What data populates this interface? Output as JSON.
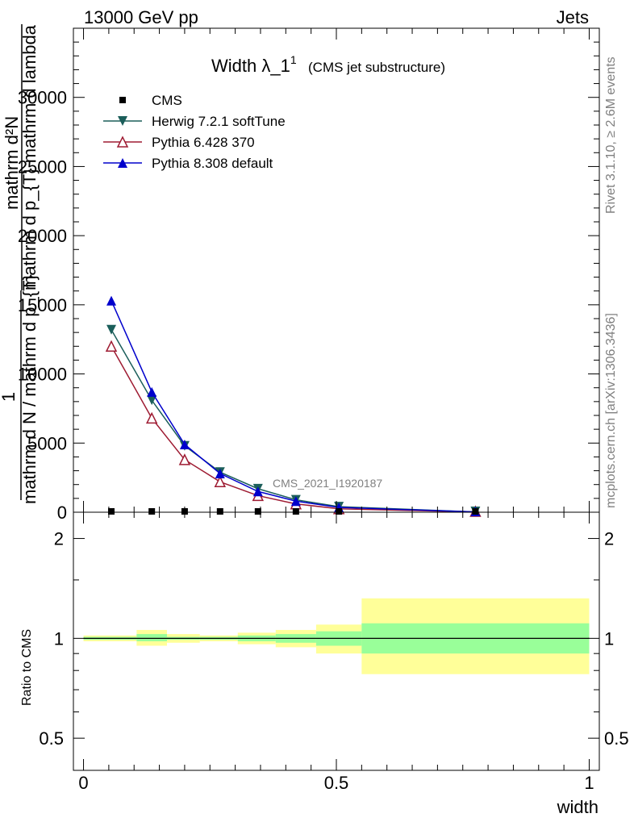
{
  "header": {
    "left": "13000 GeV pp",
    "right": "Jets"
  },
  "side": {
    "top": "Rivet 3.1.10, ≥ 2.6M events",
    "bottom": "mcplots.cern.ch [arXiv:1306.3436]"
  },
  "watermark": "CMS_2021_I1920187",
  "chart_data": [
    {
      "type": "line",
      "title": "Width λ_1",
      "title_superscript": "1",
      "subtitle": "(CMS jet substructure)",
      "ylabel_numerator": "mathrm d²N",
      "ylabel_denominator": "mathrm d p_{T} mathrm d lambda",
      "ylabel_prefix_numerator": "1",
      "ylabel_prefix_denominator": "mathrm d N / mathrm d p_{T}",
      "ylim": [
        0,
        35000
      ],
      "xlim": [
        -0.02,
        1.02
      ],
      "yticks": [
        0,
        5000,
        10000,
        15000,
        20000,
        25000,
        30000
      ],
      "ytick_labels": [
        "0",
        "5000",
        "10000",
        "15000",
        "20000",
        "25000",
        "30000"
      ],
      "legend_position": "top-left",
      "series": [
        {
          "name": "CMS",
          "color": "#000000",
          "marker": "square",
          "x": [
            0.055,
            0.135,
            0.2,
            0.27,
            0.345,
            0.42,
            0.505,
            0.775
          ],
          "y": [
            60,
            60,
            55,
            50,
            45,
            35,
            20,
            2
          ]
        },
        {
          "name": "Herwig 7.2.1 softTune",
          "color": "#1b5e5a",
          "marker": "triangle-down",
          "x": [
            0.055,
            0.135,
            0.2,
            0.27,
            0.345,
            0.42,
            0.505,
            0.775
          ],
          "y": [
            13200,
            8100,
            4800,
            2900,
            1700,
            900,
            400,
            20
          ]
        },
        {
          "name": "Pythia 6.428 370",
          "color": "#9e1b32",
          "marker": "triangle-up-open",
          "x": [
            0.055,
            0.135,
            0.2,
            0.27,
            0.345,
            0.42,
            0.505,
            0.775
          ],
          "y": [
            12000,
            6800,
            3800,
            2200,
            1200,
            600,
            250,
            15
          ]
        },
        {
          "name": "Pythia 8.308 default",
          "color": "#0000cc",
          "marker": "triangle-up",
          "x": [
            0.055,
            0.135,
            0.2,
            0.27,
            0.345,
            0.42,
            0.505,
            0.775
          ],
          "y": [
            15300,
            8700,
            4900,
            2800,
            1500,
            800,
            350,
            20
          ]
        }
      ]
    },
    {
      "type": "area",
      "ylabel": "Ratio to CMS",
      "xlabel": "width",
      "ylim": [
        0.4,
        2.4
      ],
      "xlim": [
        -0.02,
        1.02
      ],
      "yscale": "log",
      "yticks": [
        0.5,
        1,
        2
      ],
      "ytick_labels": [
        "0.5",
        "1",
        "2"
      ],
      "xticks": [
        0,
        0.5,
        1
      ],
      "xtick_labels": [
        "0",
        "0.5",
        "1"
      ],
      "reference": 1,
      "bins": [
        {
          "x0": 0.0,
          "x1": 0.105,
          "inner": [
            0.99,
            1.01
          ],
          "outer": [
            0.98,
            1.02
          ]
        },
        {
          "x0": 0.105,
          "x1": 0.165,
          "inner": [
            0.98,
            1.03
          ],
          "outer": [
            0.95,
            1.06
          ]
        },
        {
          "x0": 0.165,
          "x1": 0.23,
          "inner": [
            0.99,
            1.01
          ],
          "outer": [
            0.97,
            1.03
          ]
        },
        {
          "x0": 0.23,
          "x1": 0.305,
          "inner": [
            0.99,
            1.01
          ],
          "outer": [
            0.98,
            1.02
          ]
        },
        {
          "x0": 0.305,
          "x1": 0.38,
          "inner": [
            0.98,
            1.02
          ],
          "outer": [
            0.96,
            1.04
          ]
        },
        {
          "x0": 0.38,
          "x1": 0.46,
          "inner": [
            0.97,
            1.03
          ],
          "outer": [
            0.94,
            1.06
          ]
        },
        {
          "x0": 0.46,
          "x1": 0.55,
          "inner": [
            0.95,
            1.05
          ],
          "outer": [
            0.9,
            1.1
          ]
        },
        {
          "x0": 0.55,
          "x1": 1.0,
          "inner": [
            0.9,
            1.11
          ],
          "outer": [
            0.78,
            1.32
          ]
        }
      ],
      "inner_color": "#99ff99",
      "outer_color": "#ffff99"
    }
  ]
}
